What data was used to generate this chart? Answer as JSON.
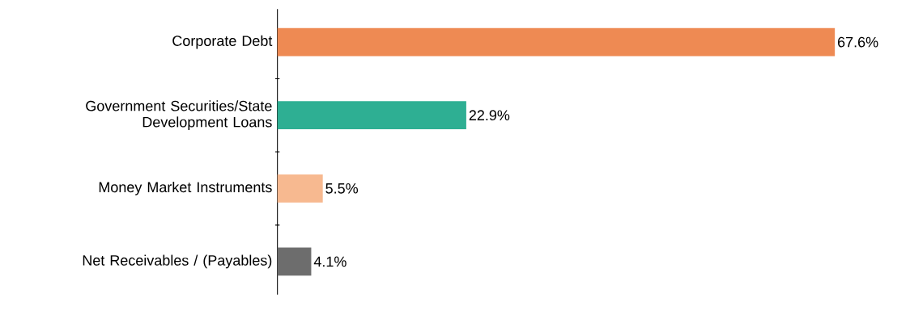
{
  "chart_data": {
    "type": "bar",
    "orientation": "horizontal",
    "categories": [
      "Corporate Debt",
      "Government Securities/State Development Loans",
      "Money Market Instruments",
      "Net Receivables / (Payables)"
    ],
    "values": [
      67.6,
      22.9,
      5.5,
      4.1
    ],
    "value_labels": [
      "67.6%",
      "22.9%",
      "5.5%",
      "4.1%"
    ],
    "colors": [
      "#ee8a53",
      "#2eaf93",
      "#f7b990",
      "#6d6d6d"
    ]
  }
}
